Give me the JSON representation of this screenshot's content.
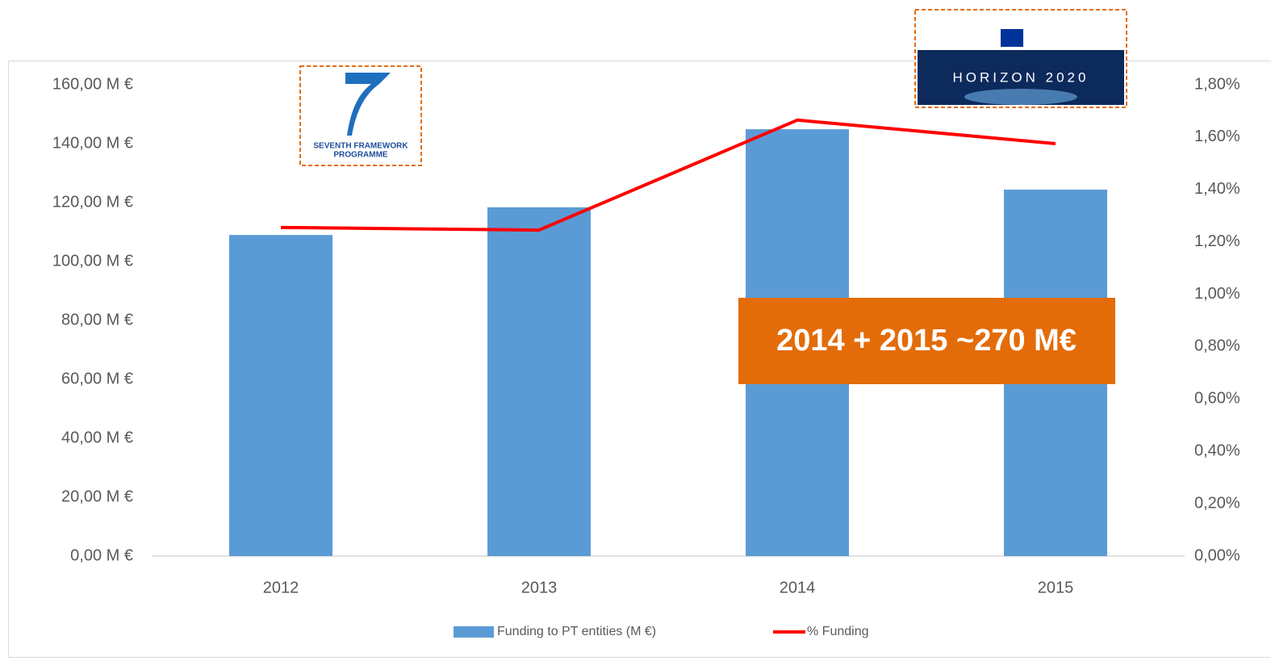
{
  "chart_data": {
    "type": "bar",
    "categories": [
      "2012",
      "2013",
      "2014",
      "2015"
    ],
    "series": [
      {
        "name": "Funding to PT entities (M €)",
        "type": "bar",
        "color": "#5b9bd5",
        "values": [
          109.0,
          118.4,
          144.9,
          124.4
        ]
      },
      {
        "name": "% Funding",
        "type": "line",
        "axis": "y2",
        "color": "#ff0000",
        "values": [
          1.255,
          1.245,
          1.665,
          1.575
        ]
      }
    ],
    "ylim": [
      0,
      160
    ],
    "yticks": [
      {
        "value": 0,
        "label": "0,00 M €"
      },
      {
        "value": 20,
        "label": "20,00 M €"
      },
      {
        "value": 40,
        "label": "40,00 M €"
      },
      {
        "value": 60,
        "label": "60,00 M €"
      },
      {
        "value": 80,
        "label": "80,00 M €"
      },
      {
        "value": 100,
        "label": "100,00 M €"
      },
      {
        "value": 120,
        "label": "120,00 M €"
      },
      {
        "value": 140,
        "label": "140,00 M €"
      },
      {
        "value": 160,
        "label": "160,00 M €"
      }
    ],
    "y2lim": [
      0,
      1.8
    ],
    "y2ticks": [
      {
        "value": 0,
        "label": "0,00%"
      },
      {
        "value": 0.2,
        "label": "0,20%"
      },
      {
        "value": 0.4,
        "label": "0,40%"
      },
      {
        "value": 0.6,
        "label": "0,60%"
      },
      {
        "value": 0.8,
        "label": "0,80%"
      },
      {
        "value": 1.0,
        "label": "1,00%"
      },
      {
        "value": 1.2,
        "label": "1,20%"
      },
      {
        "value": 1.4,
        "label": "1,40%"
      },
      {
        "value": 1.6,
        "label": "1,60%"
      },
      {
        "value": 1.8,
        "label": "1,80%"
      }
    ],
    "grid": false,
    "legend": "bottom",
    "annotation": "2014 + 2015 ~270 M€",
    "logos": [
      "SEVENTH FRAMEWORK",
      "PROGRAMME",
      "HORIZON 2020"
    ]
  }
}
